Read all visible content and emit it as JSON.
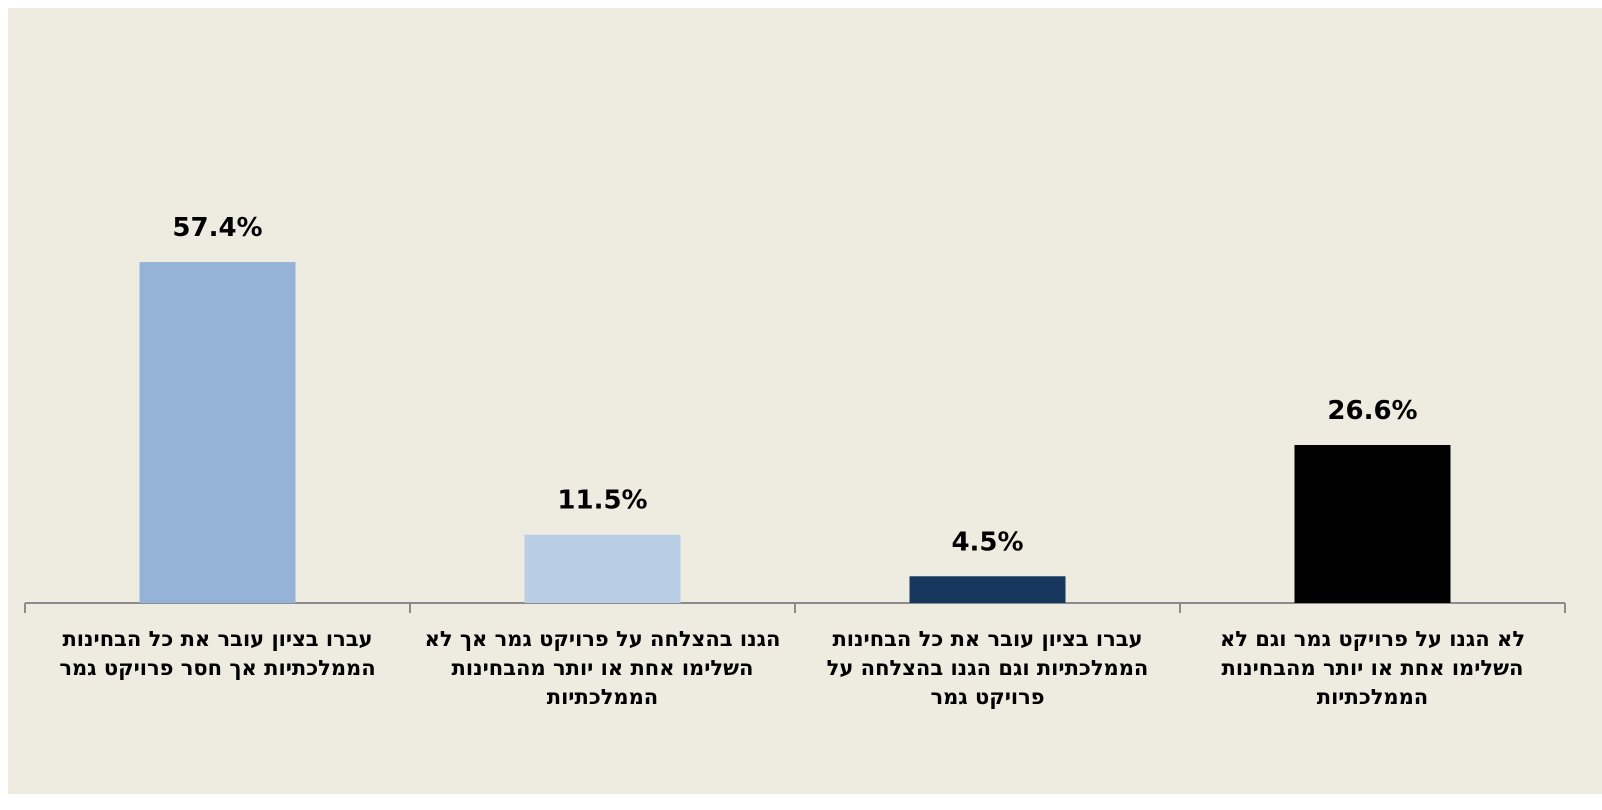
{
  "chart_data": {
    "type": "bar",
    "categories": [
      "עברו בציון עובר את כל הבחינות הממלכתיות אך חסר פרויקט גמר",
      "הגנו בהצלחה על פרויקט גמר אך לא השלימו  אחת או יותר מהבחינות הממלכתיות",
      "עברו בציון עובר את כל הבחינות הממלכתיות וגם הגנו בהצלחה על פרויקט גמר",
      "לא הגנו על פרויקט גמר וגם לא השלימו אחת או יותר מהבחינות הממלכתיות"
    ],
    "values": [
      57.4,
      11.5,
      4.5,
      26.6
    ],
    "value_labels": [
      "57.4%",
      "11.5%",
      "4.5%",
      "26.6%"
    ],
    "colors": [
      "#95b3d7",
      "#b9cde5",
      "#17375e",
      "#000000"
    ],
    "ylim": [
      0,
      100
    ]
  }
}
